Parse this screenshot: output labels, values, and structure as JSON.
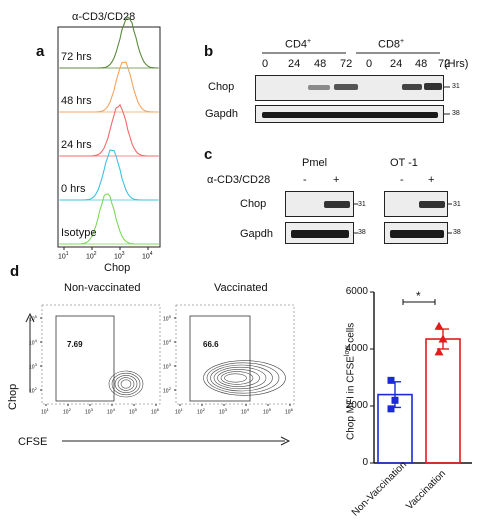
{
  "panel_a": {
    "letter": "a",
    "title": "α-CD3/CD28",
    "xlabel": "Chop",
    "x_ticks": [
      {
        "exp": "1"
      },
      {
        "exp": "2"
      },
      {
        "exp": "3"
      },
      {
        "exp": "4"
      }
    ],
    "x_tick_base": "10",
    "tracks": [
      {
        "label": "72 hrs",
        "color": "#5b8a3c"
      },
      {
        "label": "48 hrs",
        "color": "#f4a460"
      },
      {
        "label": "24 hrs",
        "color": "#f06a6a"
      },
      {
        "label": "0 hrs",
        "color": "#3fc1e0"
      },
      {
        "label": "Isotype",
        "color": "#7ed957"
      }
    ]
  },
  "panel_b": {
    "letter": "b",
    "group1": "CD4",
    "group1_sup": "+",
    "group2": "CD8",
    "group2_sup": "+",
    "timepoints": [
      "0",
      "24",
      "48",
      "72",
      "0",
      "24",
      "48",
      "72"
    ],
    "unit": "(Hrs)",
    "rows": [
      {
        "label": "Chop",
        "mw": "31"
      },
      {
        "label": "Gapdh",
        "mw": "38"
      }
    ]
  },
  "panel_c": {
    "letter": "c",
    "group1": "Pmel",
    "group2": "OT -1",
    "treatment_label": "α-CD3/CD28",
    "treatment_states": [
      "-",
      "+",
      "-",
      "+"
    ],
    "rows": [
      {
        "label": "Chop",
        "mw": "31"
      },
      {
        "label": "Gapdh",
        "mw": "38"
      }
    ]
  },
  "panel_d": {
    "letter": "d",
    "plot1_title": "Non-vaccinated",
    "plot2_title": "Vaccinated",
    "gate1_value": "7.69",
    "gate2_value": "66.6",
    "y_axis_label": "Chop",
    "x_axis_label": "CFSE",
    "tick_base": "10",
    "x_tick_exps": [
      "1",
      "2",
      "3",
      "4",
      "5",
      "6"
    ],
    "y_tick_exps": [
      "2",
      "3",
      "4",
      "5"
    ]
  },
  "chart_data": {
    "type": "scatter",
    "ylabel": "Chop MFI in CFSE",
    "ylabel_sup": "low",
    "ylabel_suffix": " cells",
    "ylim": [
      0,
      6000
    ],
    "y_ticks": [
      "0",
      "2000",
      "4000",
      "6000"
    ],
    "categories": [
      "Non-Vaccination",
      "Vaccination"
    ],
    "significance": "*",
    "series": [
      {
        "color": "#1a2bd6",
        "marker": "square",
        "mean": 2400,
        "sem": 450,
        "points": [
          2900,
          2200,
          1900
        ]
      },
      {
        "color": "#e21b1b",
        "marker": "triangle",
        "mean": 4350,
        "sem": 350,
        "points": [
          4800,
          4350,
          3900
        ]
      }
    ]
  }
}
